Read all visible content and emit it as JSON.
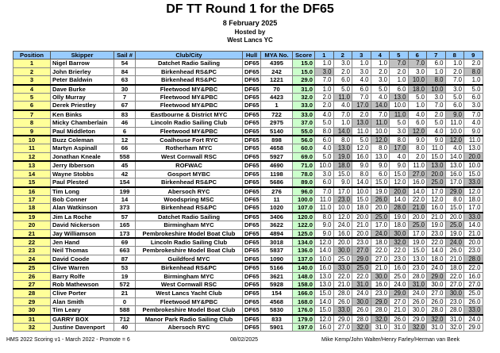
{
  "header": {
    "title": "DF TT Round 1 for the DF65",
    "date": "8 February 2025",
    "hosted_by": "Hosted by",
    "host": "West Lancs YC"
  },
  "columns": [
    "Position",
    "Skipper",
    "Sail #",
    "Club/City",
    "Hull",
    "MYA No.",
    "Score",
    "1",
    "2",
    "3",
    "4",
    "5",
    "6",
    "7",
    "8",
    "9"
  ],
  "colors": {
    "header": "#99ccff",
    "position": "#ffff99",
    "score": "#ccffcc",
    "discard": "#c0c0c0"
  },
  "rows": [
    [
      "1",
      "Nigel Barrow",
      "54",
      "Datchet Radio Sailing",
      "DF65",
      "4395",
      "15.0",
      [
        "1.0",
        "3.0",
        "1.0",
        "1.0",
        "7.0",
        "7.0",
        "6.0",
        "1.0",
        "2.0"
      ],
      [
        5,
        6
      ]
    ],
    [
      "2",
      "John Brierley",
      "84",
      "Birkenhead RS&PC",
      "DF65",
      "242",
      "15.0",
      [
        "3.0",
        "2.0",
        "3.0",
        "2.0",
        "2.0",
        "3.0",
        "1.0",
        "2.0",
        "8.0"
      ],
      [
        1,
        9
      ]
    ],
    [
      "3",
      "Peter Baldwin",
      "63",
      "Birkenhead RS&PC",
      "DF65",
      "1221",
      "29.0",
      [
        "7.0",
        "6.0",
        "4.0",
        "3.0",
        "1.0",
        "10.0",
        "8.0",
        "7.0",
        "1.0"
      ],
      [
        6,
        7
      ]
    ],
    [
      "4",
      "Dave Burke",
      "30",
      "Fleetwood MY&PBC",
      "DF65",
      "70",
      "31.0",
      [
        "1.0",
        "5.0",
        "6.0",
        "5.0",
        "6.0",
        "18.0",
        "10.0",
        "3.0",
        "5.0"
      ],
      [
        6,
        7
      ]
    ],
    [
      "5",
      "Olly Murray",
      "7",
      "Fleetwood MY&PBC",
      "DF65",
      "4423",
      "32.0",
      [
        "2.0",
        "11.0",
        "7.0",
        "4.0",
        "13.0",
        "5.0",
        "3.0",
        "5.0",
        "6.0"
      ],
      [
        2,
        5
      ]
    ],
    [
      "6",
      "Derek Priestley",
      "67",
      "Fleetwood MY&PBC",
      "DF65",
      "1",
      "33.0",
      [
        "2.0",
        "4.0",
        "17.0",
        "14.0",
        "10.0",
        "1.0",
        "7.0",
        "6.0",
        "3.0"
      ],
      [
        3,
        4
      ]
    ],
    [
      "7",
      "Ken Binks",
      "83",
      "Eastbourne & District MYC",
      "DF65",
      "722",
      "33.0",
      [
        "4.0",
        "7.0",
        "2.0",
        "7.0",
        "11.0",
        "4.0",
        "2.0",
        "9.0",
        "7.0"
      ],
      [
        5,
        8
      ]
    ],
    [
      "8",
      "Micky Chamberlain",
      "46",
      "Lincoln Radio Sailing Club",
      "DF65",
      "2975",
      "37.0",
      [
        "5.0",
        "1.0",
        "13.0",
        "11.0",
        "5.0",
        "6.0",
        "5.0",
        "11.0",
        "4.0"
      ],
      [
        3,
        4
      ]
    ],
    [
      "9",
      "Paul Middleton",
      "6",
      "Fleetwood MY&PBC",
      "DF65",
      "5140",
      "55.0",
      [
        "8.0",
        "14.0",
        "11.0",
        "10.0",
        "3.0",
        "12.0",
        "4.0",
        "10.0",
        "9.0"
      ],
      [
        2,
        6
      ]
    ],
    [
      "10",
      "Buzz Coleman",
      "12",
      "Coalhouse Fort RYC",
      "DF65",
      "898",
      "56.0",
      [
        "6.0",
        "8.0",
        "5.0",
        "12.0",
        "8.0",
        "9.0",
        "9.0",
        "12.0",
        "11.0"
      ],
      [
        4,
        8
      ]
    ],
    [
      "11",
      "Martyn Aspinall",
      "66",
      "Rotherham MYC",
      "DF65",
      "4658",
      "60.0",
      [
        "4.0",
        "13.0",
        "12.0",
        "8.0",
        "17.0",
        "8.0",
        "11.0",
        "4.0",
        "13.0"
      ],
      [
        2,
        5
      ]
    ],
    [
      "12",
      "Jonathan Kneale",
      "558",
      "West Cornwall RSC",
      "DF65",
      "5927",
      "69.0",
      [
        "5.0",
        "19.0",
        "16.0",
        "13.0",
        "4.0",
        "2.0",
        "15.0",
        "14.0",
        "20.0"
      ],
      [
        2,
        9
      ]
    ],
    [
      "13",
      "Jerry Ibberson",
      "45",
      "ROFWAC",
      "DF65",
      "4690",
      "71.0",
      [
        "10.0",
        "18.0",
        "9.0",
        "9.0",
        "9.0",
        "11.0",
        "13.0",
        "13.0",
        "10.0"
      ],
      [
        2,
        7
      ]
    ],
    [
      "14",
      "Wayne Stobbs",
      "42",
      "Gosport MYBC",
      "DF65",
      "1198",
      "78.0",
      [
        "3.0",
        "15.0",
        "8.0",
        "6.0",
        "15.0",
        "27.0",
        "20.0",
        "16.0",
        "15.0"
      ],
      [
        6,
        7
      ]
    ],
    [
      "15",
      "Paul Plested",
      "154",
      "Birkenhead RS&PC",
      "DF65",
      "5686",
      "89.0",
      [
        "6.0",
        "9.0",
        "14.0",
        "15.0",
        "12.0",
        "16.0",
        "25.0",
        "17.0",
        "33.0"
      ],
      [
        7,
        9
      ]
    ],
    [
      "16",
      "Tim Long",
      "199",
      "Abersoch RYC",
      "DF65",
      "276",
      "96.0",
      [
        "7.0",
        "17.0",
        "10.0",
        "19.0",
        "20.0",
        "14.0",
        "17.0",
        "29.0",
        "12.0"
      ],
      [
        5,
        8
      ]
    ],
    [
      "17",
      "Bob Conner",
      "14",
      "Woodspring MSC",
      "DF65",
      "11",
      "100.0",
      [
        "11.0",
        "23.0",
        "15.0",
        "26.0",
        "14.0",
        "22.0",
        "12.0",
        "8.0",
        "18.0"
      ],
      [
        2,
        4
      ]
    ],
    [
      "18",
      "Alan Watkinson",
      "373",
      "Birkenhead RS&PC",
      "DF65",
      "1020",
      "107.0",
      [
        "11.0",
        "10.0",
        "18.0",
        "20.0",
        "28.0",
        "21.0",
        "16.0",
        "15.0",
        "17.0"
      ],
      [
        5,
        6
      ]
    ],
    [
      "19",
      "Jim La Roche",
      "57",
      "Datchet Radio Sailing",
      "DF65",
      "3406",
      "120.0",
      [
        "8.0",
        "12.0",
        "20.0",
        "25.0",
        "19.0",
        "20.0",
        "21.0",
        "20.0",
        "33.0"
      ],
      [
        4,
        9
      ]
    ],
    [
      "20",
      "David Nickerson",
      "165",
      "Birmingham MYC",
      "DF65",
      "3622",
      "122.0",
      [
        "9.0",
        "24.0",
        "21.0",
        "17.0",
        "18.0",
        "25.0",
        "19.0",
        "25.0",
        "14.0"
      ],
      [
        6,
        8
      ]
    ],
    [
      "21",
      "Jay Williamson",
      "173",
      "Pembrokeshire Model Boat Club",
      "DF65",
      "4894",
      "125.0",
      [
        "9.0",
        "16.0",
        "20.0",
        "24.0",
        "30.0",
        "17.0",
        "23.0",
        "19.0",
        "21.0"
      ],
      [
        4,
        5
      ]
    ],
    [
      "22",
      "Jen Hand",
      "69",
      "Lincoln Radio Sailing Club",
      "DF65",
      "3018",
      "134.0",
      [
        "12.0",
        "20.0",
        "23.0",
        "18.0",
        "32.0",
        "19.0",
        "22.0",
        "24.0",
        "20.0"
      ],
      [
        5,
        8
      ]
    ],
    [
      "23",
      "Neil Thomas",
      "663",
      "Pembrokeshire Model Boat Club",
      "DF65",
      "5837",
      "136.0",
      [
        "14.0",
        "30.0",
        "27.0",
        "22.0",
        "22.0",
        "15.0",
        "14.0",
        "26.0",
        "23.0"
      ],
      [
        2,
        3
      ]
    ],
    [
      "24",
      "David Coode",
      "87",
      "Guildford MYC",
      "DF65",
      "1090",
      "137.0",
      [
        "10.0",
        "25.0",
        "29.0",
        "27.0",
        "23.0",
        "13.0",
        "18.0",
        "21.0",
        "28.0"
      ],
      [
        3,
        9
      ]
    ],
    [
      "25",
      "Clive Warren",
      "53",
      "Birkenhead RS&PC",
      "DF65",
      "5166",
      "140.0",
      [
        "16.0",
        "33.0",
        "25.0",
        "21.0",
        "16.0",
        "23.0",
        "24.0",
        "18.0",
        "22.0"
      ],
      [
        2,
        3
      ]
    ],
    [
      "26",
      "Barry Rolfe",
      "19",
      "Birmingham MYC",
      "DF65",
      "3621",
      "148.0",
      [
        "13.0",
        "22.0",
        "22.0",
        "30.0",
        "25.0",
        "28.0",
        "29.0",
        "22.0",
        "16.0"
      ],
      [
        4,
        7
      ]
    ],
    [
      "27",
      "Rob Mathewson",
      "572",
      "West Cornwall RSC",
      "DF65",
      "5928",
      "158.0",
      [
        "13.0",
        "21.0",
        "31.0",
        "16.0",
        "24.0",
        "31.0",
        "30.0",
        "27.0",
        "27.0"
      ],
      [
        3,
        6
      ]
    ],
    [
      "28",
      "Clive Porter",
      "21",
      "West Lancs Yacht Club",
      "DF65",
      "154",
      "166.0",
      [
        "15.0",
        "28.0",
        "24.0",
        "23.0",
        "29.0",
        "24.0",
        "27.0",
        "30.0",
        "25.0"
      ],
      [
        5,
        8
      ]
    ],
    [
      "29",
      "Alan Smith",
      "0",
      "Fleetwood MY&PBC",
      "DF65",
      "4568",
      "168.0",
      [
        "14.0",
        "26.0",
        "30.0",
        "29.0",
        "27.0",
        "26.0",
        "26.0",
        "23.0",
        "26.0"
      ],
      [
        3,
        4
      ]
    ],
    [
      "30",
      "Tim Leary",
      "588",
      "Pembrokeshire Model Boat Club",
      "DF65",
      "5830",
      "176.0",
      [
        "15.0",
        "33.0",
        "26.0",
        "28.0",
        "21.0",
        "30.0",
        "28.0",
        "28.0",
        "33.0"
      ],
      [
        2,
        9
      ]
    ],
    [
      "31",
      "GARRY BOX",
      "712",
      "Manor Park Radio Sailing Club",
      "DF65",
      "833",
      "179.0",
      [
        "12.0",
        "29.0",
        "28.0",
        "32.0",
        "26.0",
        "29.0",
        "32.0",
        "31.0",
        "24.0"
      ],
      [
        4,
        7
      ]
    ],
    [
      "32",
      "Justine Davenport",
      "40",
      "Abersoch RYC",
      "DF65",
      "5901",
      "197.0",
      [
        "16.0",
        "27.0",
        "32.0",
        "31.0",
        "31.0",
        "32.0",
        "31.0",
        "32.0",
        "29.0"
      ],
      [
        3,
        6
      ]
    ]
  ],
  "footer": {
    "left": "HMS 2022 Scoring v1 - March 2022 - Promote = 6",
    "center": "08/02/2025",
    "right": "Mike Kemp/John Walter/Henry Farley/Herman van Beek"
  }
}
